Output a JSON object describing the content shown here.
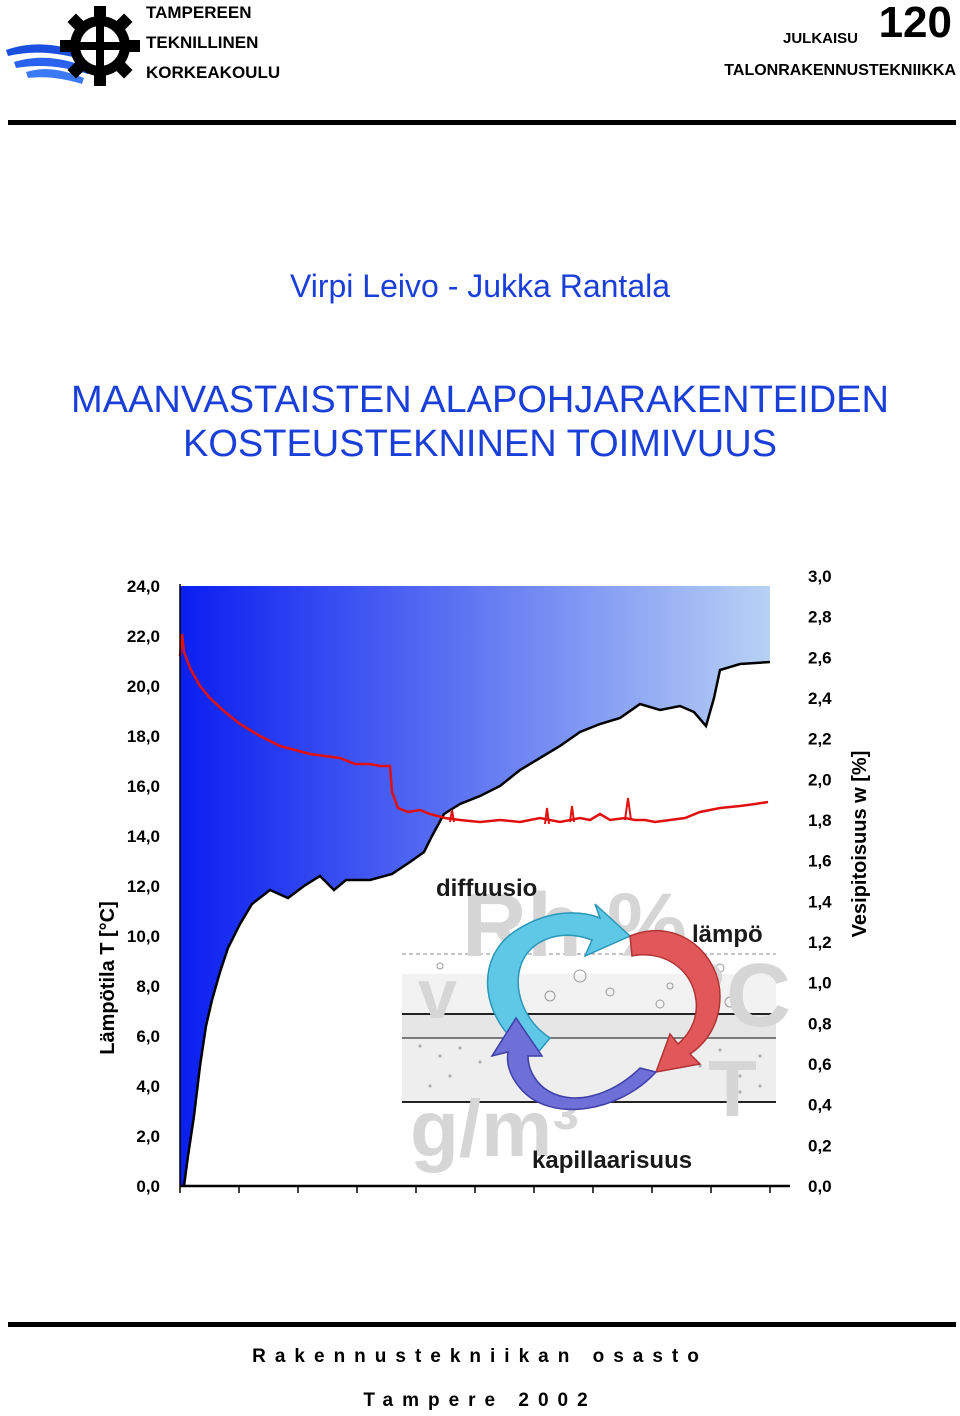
{
  "header": {
    "university_lines": [
      "TAMPEREEN",
      "TEKNILLINEN",
      "KORKEAKOULU"
    ],
    "series_label": "JULKAISU",
    "series_number": "120",
    "subject": "TALONRAKENNUSTEKNIIKKA"
  },
  "authors": "Virpi Leivo - Jukka Rantala",
  "title_lines": [
    "MAANVASTAISTEN ALAPOHJARAKENTEIDEN",
    "KOSTEUSTEKNINEN TOIMIVUUS"
  ],
  "figure": {
    "left_axis_label": "Lämpötila T [°C]",
    "right_axis_label": "Vesipitoisuus w [%]",
    "left_ticks": [
      "0,0",
      "2,0",
      "4,0",
      "6,0",
      "8,0",
      "10,0",
      "12,0",
      "14,0",
      "16,0",
      "18,0",
      "20,0",
      "22,0",
      "24,0"
    ],
    "right_ticks": [
      "0,0",
      "0,2",
      "0,4",
      "0,6",
      "0,8",
      "1,0",
      "1,2",
      "1,4",
      "1,6",
      "1,8",
      "2,0",
      "2,2",
      "2,4",
      "2,6",
      "2,8",
      "3,0"
    ],
    "labels": {
      "diffusion": "diffuusio",
      "heat": "lämpö",
      "capillary": "kapillaarisuus"
    },
    "watermark": [
      "Rh %",
      "v",
      "°C",
      "g/m³",
      "T"
    ],
    "colors": {
      "temperature_line": "#e01010",
      "area_fill_dark": "#0a1ef0",
      "area_fill_light": "#b8d2f4",
      "diffusion_arrow": "#5ec8e6",
      "heat_arrow": "#e2585a",
      "capillary_arrow": "#6f6fd8"
    }
  },
  "footer": {
    "department": "Rakennustekniikan osasto",
    "place_year": "Tampere 2002"
  }
}
